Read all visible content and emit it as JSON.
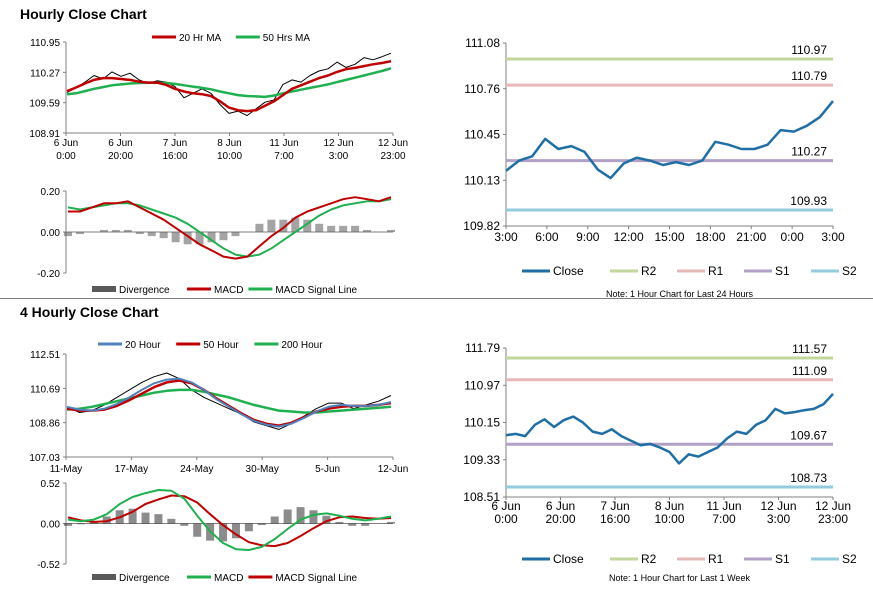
{
  "sections": {
    "hourly_title": "Hourly Close Chart",
    "four_hourly_title": "4 Hourly Close Chart"
  },
  "colors": {
    "close": "#1f6fa6",
    "ma_red": "#c00000",
    "ma_green": "#1fb050",
    "ma_blue": "#4f81bd",
    "r2": "#c3d69b",
    "r1": "#e6b9b8",
    "s1": "#b2a1c7",
    "s2": "#93cddd",
    "divergence": "#595959",
    "macd_bar": "#000000"
  },
  "chart_data": [
    {
      "id": "hourly_price",
      "type": "line",
      "legend": [
        "20 Hr MA",
        "50 Hrs MA"
      ],
      "ylim": [
        108.91,
        110.95
      ],
      "yticks": [
        110.95,
        110.27,
        109.59,
        108.91
      ],
      "ytick_labels": [
        "110.95",
        "110.27",
        "109.59",
        "108.91"
      ],
      "xtick_labels": [
        [
          "6 Jun",
          "0:00"
        ],
        [
          "6 Jun",
          "20:00"
        ],
        [
          "7 Jun",
          "16:00"
        ],
        [
          "8 Jun",
          "10:00"
        ],
        [
          "11 Jun",
          "7:00"
        ],
        [
          "12 Jun",
          "3:00"
        ],
        [
          "12 Jun",
          "23:00"
        ]
      ],
      "series": [
        {
          "name": "Close",
          "values": [
            109.82,
            109.92,
            110.05,
            110.2,
            110.12,
            110.28,
            110.18,
            110.25,
            110.1,
            110.02,
            110.08,
            110.05,
            109.95,
            109.7,
            109.8,
            109.9,
            109.8,
            109.55,
            109.35,
            109.4,
            109.3,
            109.45,
            109.6,
            109.65,
            110.0,
            110.1,
            110.05,
            110.2,
            110.3,
            110.35,
            110.5,
            110.38,
            110.45,
            110.6,
            110.55,
            110.62,
            110.7
          ]
        },
        {
          "name": "20 Hr MA",
          "values": [
            109.85,
            109.93,
            110.02,
            110.1,
            110.14,
            110.14,
            110.12,
            110.1,
            110.06,
            110.04,
            110.04,
            109.99,
            109.9,
            109.84,
            109.8,
            109.78,
            109.74,
            109.62,
            109.48,
            109.42,
            109.4,
            109.42,
            109.52,
            109.62,
            109.76,
            109.9,
            109.98,
            110.06,
            110.14,
            110.2,
            110.28,
            110.34,
            110.37,
            110.41,
            110.45,
            110.48,
            110.52
          ]
        },
        {
          "name": "50 Hrs MA",
          "values": [
            109.78,
            109.8,
            109.85,
            109.9,
            109.94,
            109.98,
            110.0,
            110.02,
            110.03,
            110.04,
            110.04,
            110.03,
            110.01,
            109.98,
            109.95,
            109.92,
            109.89,
            109.84,
            109.8,
            109.76,
            109.74,
            109.73,
            109.72,
            109.75,
            109.8,
            109.84,
            109.88,
            109.92,
            109.96,
            110.0,
            110.05,
            110.1,
            110.15,
            110.2,
            110.25,
            110.3,
            110.36
          ]
        }
      ]
    },
    {
      "id": "hourly_macd",
      "type": "line",
      "legend": [
        "Divergence",
        "MACD",
        "MACD Signal Line"
      ],
      "ylim": [
        -0.2,
        0.2
      ],
      "ytick_labels": [
        "0.20",
        "0.00",
        "-0.20"
      ],
      "series": [
        {
          "name": "MACD",
          "values": [
            0.1,
            0.1,
            0.12,
            0.14,
            0.14,
            0.15,
            0.12,
            0.09,
            0.06,
            0.02,
            -0.02,
            -0.06,
            -0.09,
            -0.12,
            -0.13,
            -0.12,
            -0.07,
            -0.02,
            0.02,
            0.07,
            0.1,
            0.12,
            0.14,
            0.16,
            0.17,
            0.16,
            0.15,
            0.17
          ]
        },
        {
          "name": "MACD Signal Line",
          "values": [
            0.12,
            0.11,
            0.12,
            0.13,
            0.14,
            0.14,
            0.13,
            0.11,
            0.09,
            0.07,
            0.04,
            0.0,
            -0.04,
            -0.08,
            -0.11,
            -0.12,
            -0.11,
            -0.08,
            -0.04,
            0.0,
            0.04,
            0.08,
            0.11,
            0.13,
            0.14,
            0.15,
            0.15,
            0.16
          ]
        },
        {
          "name": "Divergence",
          "values": [
            -0.02,
            -0.01,
            0.0,
            0.01,
            0.01,
            0.01,
            -0.01,
            -0.02,
            -0.03,
            -0.05,
            -0.06,
            -0.06,
            -0.05,
            -0.04,
            -0.02,
            0.0,
            0.04,
            0.06,
            0.06,
            0.07,
            0.06,
            0.04,
            0.03,
            0.03,
            0.03,
            0.01,
            0.0,
            0.01
          ]
        }
      ]
    },
    {
      "id": "hourly_levels",
      "type": "line",
      "ylim": [
        109.82,
        111.08
      ],
      "ytick_labels": [
        "111.08",
        "110.76",
        "110.45",
        "110.13",
        "109.82"
      ],
      "xtick_labels": [
        "3:00",
        "6:00",
        "9:00",
        "12:00",
        "15:00",
        "18:00",
        "21:00",
        "0:00",
        "3:00"
      ],
      "levels": [
        {
          "name": "R2",
          "value": 110.97,
          "label": "110.97"
        },
        {
          "name": "R1",
          "value": 110.79,
          "label": "110.79"
        },
        {
          "name": "S1",
          "value": 110.27,
          "label": "110.27"
        },
        {
          "name": "S2",
          "value": 109.93,
          "label": "109.93"
        }
      ],
      "legend": [
        "Close",
        "R2",
        "R1",
        "S1",
        "S2"
      ],
      "note": "Note: 1 Hour Chart for Last 24 Hours",
      "series": [
        {
          "name": "Close",
          "values": [
            110.2,
            110.27,
            110.3,
            110.42,
            110.35,
            110.37,
            110.33,
            110.21,
            110.15,
            110.25,
            110.29,
            110.27,
            110.24,
            110.26,
            110.24,
            110.27,
            110.4,
            110.38,
            110.35,
            110.35,
            110.38,
            110.48,
            110.47,
            110.51,
            110.57,
            110.68
          ]
        }
      ]
    },
    {
      "id": "four_hourly_price",
      "type": "line",
      "legend": [
        "20 Hour",
        "50 Hour",
        "200 Hour"
      ],
      "ylim": [
        107.03,
        112.51
      ],
      "ytick_labels": [
        "112.51",
        "110.69",
        "108.86",
        "107.03"
      ],
      "xtick_labels": [
        "11-May",
        "17-May",
        "24-May",
        "30-May",
        "5-Jun",
        "12-Jun"
      ],
      "series": [
        {
          "name": "Close",
          "values": [
            109.7,
            109.4,
            109.5,
            109.8,
            110.2,
            110.6,
            111.0,
            111.3,
            111.5,
            111.2,
            110.6,
            110.2,
            109.9,
            109.6,
            109.3,
            108.9,
            108.7,
            108.5,
            108.8,
            109.2,
            109.6,
            109.9,
            109.9,
            109.6,
            109.8,
            110.0,
            110.3
          ]
        },
        {
          "name": "20 Hour",
          "values": [
            109.7,
            109.55,
            109.5,
            109.6,
            109.85,
            110.2,
            110.6,
            110.95,
            111.15,
            111.2,
            111.0,
            110.6,
            110.1,
            109.7,
            109.3,
            108.95,
            108.75,
            108.65,
            108.8,
            109.1,
            109.45,
            109.7,
            109.8,
            109.75,
            109.75,
            109.8,
            109.95
          ]
        },
        {
          "name": "50 Hour",
          "values": [
            109.6,
            109.5,
            109.5,
            109.55,
            109.75,
            110.05,
            110.4,
            110.75,
            111.0,
            111.1,
            110.95,
            110.6,
            110.15,
            109.75,
            109.35,
            109.0,
            108.8,
            108.7,
            108.85,
            109.15,
            109.45,
            109.6,
            109.7,
            109.75,
            109.75,
            109.8,
            109.9
          ]
        },
        {
          "name": "200 Hour",
          "values": [
            109.55,
            109.6,
            109.7,
            109.85,
            110.0,
            110.15,
            110.3,
            110.45,
            110.55,
            110.6,
            110.6,
            110.5,
            110.35,
            110.2,
            110.0,
            109.8,
            109.65,
            109.5,
            109.45,
            109.4,
            109.4,
            109.45,
            109.5,
            109.55,
            109.6,
            109.65,
            109.7
          ]
        }
      ]
    },
    {
      "id": "four_hourly_macd",
      "type": "line",
      "legend": [
        "Divergence",
        "MACD",
        "MACD Signal Line"
      ],
      "ylim": [
        -0.52,
        0.52
      ],
      "ytick_labels": [
        "0.52",
        "0.00",
        "-0.52"
      ],
      "series": [
        {
          "name": "MACD",
          "values": [
            0.05,
            0.03,
            0.05,
            0.12,
            0.25,
            0.34,
            0.39,
            0.43,
            0.42,
            0.32,
            0.1,
            -0.1,
            -0.25,
            -0.33,
            -0.34,
            -0.3,
            -0.2,
            -0.07,
            0.05,
            0.11,
            0.13,
            0.1,
            0.06,
            0.04,
            0.06,
            0.09
          ]
        },
        {
          "name": "MACD Signal Line",
          "values": [
            0.08,
            0.04,
            0.02,
            0.03,
            0.08,
            0.15,
            0.25,
            0.31,
            0.36,
            0.35,
            0.27,
            0.12,
            -0.02,
            -0.14,
            -0.24,
            -0.28,
            -0.29,
            -0.25,
            -0.16,
            -0.06,
            0.03,
            0.08,
            0.09,
            0.07,
            0.06,
            0.07
          ]
        },
        {
          "name": "Divergence",
          "values": [
            -0.03,
            -0.01,
            0.03,
            0.09,
            0.17,
            0.19,
            0.14,
            0.12,
            0.06,
            -0.03,
            -0.17,
            -0.22,
            -0.23,
            -0.19,
            -0.1,
            -0.02,
            0.09,
            0.18,
            0.21,
            0.17,
            0.1,
            0.02,
            -0.03,
            -0.03,
            0.0,
            0.02
          ]
        }
      ]
    },
    {
      "id": "four_hourly_levels",
      "type": "line",
      "ylim": [
        108.51,
        111.79
      ],
      "ytick_labels": [
        "111.79",
        "110.97",
        "110.15",
        "109.33",
        "108.51"
      ],
      "xtick_labels": [
        [
          "6 Jun",
          "0:00"
        ],
        [
          "6 Jun",
          "20:00"
        ],
        [
          "7 Jun",
          "16:00"
        ],
        [
          "8 Jun",
          "10:00"
        ],
        [
          "11 Jun",
          "7:00"
        ],
        [
          "12 Jun",
          "3:00"
        ],
        [
          "12 Jun",
          "23:00"
        ]
      ],
      "levels": [
        {
          "name": "R2",
          "value": 111.57,
          "label": "111.57"
        },
        {
          "name": "R1",
          "value": 111.09,
          "label": "111.09"
        },
        {
          "name": "S1",
          "value": 109.67,
          "label": "109.67"
        },
        {
          "name": "S2",
          "value": 108.73,
          "label": "108.73"
        }
      ],
      "legend": [
        "Close",
        "R2",
        "R1",
        "S1",
        "S2"
      ],
      "note": "Note: 1 Hour Chart for Last 1 Week",
      "series": [
        {
          "name": "Close",
          "values": [
            109.87,
            109.9,
            109.85,
            110.1,
            110.22,
            110.05,
            110.2,
            110.28,
            110.15,
            109.95,
            109.9,
            110.0,
            109.85,
            109.75,
            109.65,
            109.68,
            109.6,
            109.5,
            109.25,
            109.45,
            109.4,
            109.5,
            109.6,
            109.8,
            109.95,
            109.9,
            110.1,
            110.2,
            110.45,
            110.35,
            110.38,
            110.42,
            110.45,
            110.55,
            110.78
          ]
        }
      ]
    }
  ]
}
